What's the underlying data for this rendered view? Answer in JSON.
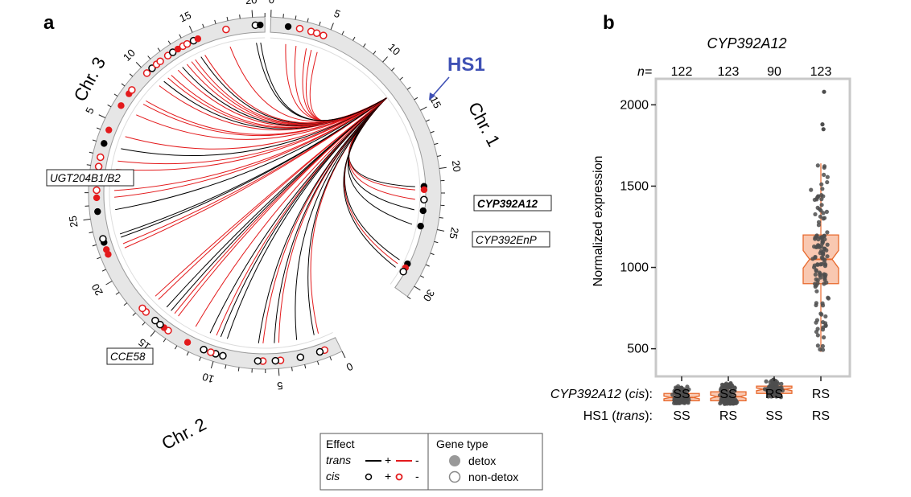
{
  "panel_a": {
    "label": "a",
    "hotspot": "HS1",
    "chromosomes": [
      {
        "name": "Chr. 1",
        "ticks": [
          "0",
          "5",
          "10",
          "15",
          "20",
          "25",
          "30"
        ]
      },
      {
        "name": "Chr. 2",
        "ticks": [
          "0",
          "5",
          "10",
          "15",
          "20",
          "25"
        ]
      },
      {
        "name": "Chr. 3",
        "ticks": [
          "0",
          "5",
          "10",
          "15",
          "20"
        ]
      }
    ],
    "gene_labels": [
      "CYP392A12",
      "CYP392EnP",
      "UGT204B1/B2",
      "CCE58"
    ],
    "legend": {
      "effect_title": "Effect",
      "trans_label": "trans",
      "cis_label": "cis",
      "plus": "+",
      "minus": "-",
      "genetype_title": "Gene type",
      "detox_label": "detox",
      "nondetox_label": "non-detox"
    }
  },
  "panel_b": {
    "label": "b",
    "title": "CYP392A12",
    "n_label": "n=",
    "ylabel": "Normalized expression",
    "cis_row_label": "CYP392A12 (cis):",
    "cis_row_gene": "CYP392A12",
    "cis_row_suffix": "(cis):",
    "trans_row_gene": "HS1",
    "trans_row_suffix": "(trans):"
  },
  "chart_data": [
    {
      "type": "chord",
      "title": "",
      "segments": [
        "Chr. 1",
        "Chr. 2",
        "Chr. 3"
      ],
      "hotspot": {
        "name": "HS1",
        "chromosome": "Chr. 1",
        "position": 12.5
      },
      "links_from_hotspot": [
        {
          "chr": "Chr. 1",
          "pos": 1.5,
          "effect": "-",
          "cis": "+",
          "gene": "detox"
        },
        {
          "chr": "Chr. 1",
          "pos": 2.5,
          "effect": "-",
          "cis": "-",
          "gene": "non-detox"
        },
        {
          "chr": "Chr. 1",
          "pos": 3.5,
          "effect": "-",
          "cis": "-",
          "gene": "non-detox"
        },
        {
          "chr": "Chr. 1",
          "pos": 4.0,
          "effect": "-",
          "cis": "-",
          "gene": "non-detox"
        },
        {
          "chr": "Chr. 1",
          "pos": 4.6,
          "effect": "-",
          "cis": "-",
          "gene": "non-detox"
        },
        {
          "chr": "Chr. 1",
          "pos": 21.4,
          "effect": "+",
          "cis": "+",
          "gene": "detox",
          "label": "CYP392A12"
        },
        {
          "chr": "Chr. 1",
          "pos": 21.7,
          "effect": "-",
          "cis": "-",
          "gene": "detox"
        },
        {
          "chr": "Chr. 1",
          "pos": 22.6,
          "effect": "-",
          "cis": "+",
          "gene": "non-detox"
        },
        {
          "chr": "Chr. 1",
          "pos": 23.6,
          "effect": "+",
          "cis": "+",
          "gene": "detox",
          "label": "CYP392EnP"
        },
        {
          "chr": "Chr. 1",
          "pos": 25.0,
          "effect": "+",
          "cis": "+",
          "gene": "detox"
        },
        {
          "chr": "Chr. 1",
          "pos": 28.6,
          "effect": "+",
          "cis": "+",
          "gene": "detox"
        },
        {
          "chr": "Chr. 1",
          "pos": 29.0,
          "effect": "-",
          "cis": "-",
          "gene": "detox"
        },
        {
          "chr": "Chr. 1",
          "pos": 29.4,
          "effect": "+",
          "cis": "+",
          "gene": "non-detox"
        },
        {
          "chr": "Chr. 2",
          "pos": 1.2,
          "effect": "-",
          "cis": "-",
          "gene": "non-detox"
        },
        {
          "chr": "Chr. 2",
          "pos": 1.6,
          "effect": "+",
          "cis": "+",
          "gene": "non-detox"
        },
        {
          "chr": "Chr. 2",
          "pos": 3.2,
          "effect": "+",
          "cis": "+",
          "gene": "non-detox"
        },
        {
          "chr": "Chr. 2",
          "pos": 4.8,
          "effect": "-",
          "cis": "-",
          "gene": "non-detox"
        },
        {
          "chr": "Chr. 2",
          "pos": 5.2,
          "effect": "+",
          "cis": "+",
          "gene": "non-detox"
        },
        {
          "chr": "Chr. 2",
          "pos": 6.2,
          "effect": "-",
          "cis": "-",
          "gene": "non-detox"
        },
        {
          "chr": "Chr. 2",
          "pos": 6.6,
          "effect": "+",
          "cis": "+",
          "gene": "non-detox"
        },
        {
          "chr": "Chr. 2",
          "pos": 9.4,
          "effect": "+",
          "cis": "+",
          "gene": "non-detox"
        },
        {
          "chr": "Chr. 2",
          "pos": 10.0,
          "effect": "+",
          "cis": "+",
          "gene": "non-detox"
        },
        {
          "chr": "Chr. 2",
          "pos": 10.4,
          "effect": "-",
          "cis": "-",
          "gene": "non-detox"
        },
        {
          "chr": "Chr. 2",
          "pos": 11.0,
          "effect": "+",
          "cis": "+",
          "gene": "non-detox"
        },
        {
          "chr": "Chr. 2",
          "pos": 12.4,
          "effect": "-",
          "cis": "-",
          "gene": "detox"
        },
        {
          "chr": "Chr. 2",
          "pos": 14.2,
          "effect": "-",
          "cis": "-",
          "gene": "non-detox"
        },
        {
          "chr": "Chr. 2",
          "pos": 14.6,
          "effect": "-",
          "cis": "-",
          "gene": "detox"
        },
        {
          "chr": "Chr. 2",
          "pos": 15.0,
          "effect": "+",
          "cis": "+",
          "gene": "non-detox"
        },
        {
          "chr": "Chr. 2",
          "pos": 15.5,
          "effect": "+",
          "cis": "+",
          "gene": "non-detox"
        },
        {
          "chr": "Chr. 2",
          "pos": 16.5,
          "effect": "-",
          "cis": "-",
          "gene": "non-detox"
        },
        {
          "chr": "Chr. 2",
          "pos": 16.9,
          "effect": "-",
          "cis": "-",
          "gene": "non-detox"
        },
        {
          "chr": "Chr. 2",
          "pos": 22.0,
          "effect": "-",
          "cis": "-",
          "gene": "detox"
        },
        {
          "chr": "Chr. 2",
          "pos": 22.4,
          "effect": "-",
          "cis": "-",
          "gene": "detox"
        },
        {
          "chr": "Chr. 2",
          "pos": 23.0,
          "effect": "+",
          "cis": "+",
          "gene": "detox",
          "label": "CCE58"
        },
        {
          "chr": "Chr. 2",
          "pos": 23.3,
          "effect": "+",
          "cis": "+",
          "gene": "non-detox"
        },
        {
          "chr": "Chr. 2",
          "pos": 25.5,
          "effect": "+",
          "cis": "+",
          "gene": "detox"
        },
        {
          "chr": "Chr. 2",
          "pos": 26.6,
          "effect": "-",
          "cis": "-",
          "gene": "detox"
        },
        {
          "chr": "Chr. 2",
          "pos": 27.2,
          "effect": "-",
          "cis": "-",
          "gene": "non-detox"
        },
        {
          "chr": "Chr. 3",
          "pos": 1.0,
          "effect": "-",
          "cis": "-",
          "gene": "non-detox"
        },
        {
          "chr": "Chr. 3",
          "pos": 1.8,
          "effect": "-",
          "cis": "-",
          "gene": "non-detox"
        },
        {
          "chr": "Chr. 3",
          "pos": 3.0,
          "effect": "+",
          "cis": "+",
          "gene": "detox"
        },
        {
          "chr": "Chr. 3",
          "pos": 4.2,
          "effect": "-",
          "cis": "-",
          "gene": "detox",
          "label": "UGT204B1/B2"
        },
        {
          "chr": "Chr. 3",
          "pos": 6.5,
          "effect": "-",
          "cis": "-",
          "gene": "detox"
        },
        {
          "chr": "Chr. 3",
          "pos": 7.7,
          "effect": "-",
          "cis": "-",
          "gene": "detox"
        },
        {
          "chr": "Chr. 3",
          "pos": 8.1,
          "effect": "-",
          "cis": "-",
          "gene": "non-detox"
        },
        {
          "chr": "Chr. 3",
          "pos": 10.0,
          "effect": "-",
          "cis": "-",
          "gene": "non-detox"
        },
        {
          "chr": "Chr. 3",
          "pos": 10.6,
          "effect": "+",
          "cis": "+",
          "gene": "non-detox"
        },
        {
          "chr": "Chr. 3",
          "pos": 11.1,
          "effect": "-",
          "cis": "-",
          "gene": "non-detox"
        },
        {
          "chr": "Chr. 3",
          "pos": 11.5,
          "effect": "-",
          "cis": "-",
          "gene": "non-detox"
        },
        {
          "chr": "Chr. 3",
          "pos": 12.3,
          "effect": "-",
          "cis": "-",
          "gene": "non-detox"
        },
        {
          "chr": "Chr. 3",
          "pos": 12.8,
          "effect": "+",
          "cis": "+",
          "gene": "non-detox"
        },
        {
          "chr": "Chr. 3",
          "pos": 13.3,
          "effect": "-",
          "cis": "-",
          "gene": "detox"
        },
        {
          "chr": "Chr. 3",
          "pos": 13.8,
          "effect": "-",
          "cis": "-",
          "gene": "non-detox"
        },
        {
          "chr": "Chr. 3",
          "pos": 14.2,
          "effect": "-",
          "cis": "-",
          "gene": "non-detox"
        },
        {
          "chr": "Chr. 3",
          "pos": 14.8,
          "effect": "+",
          "cis": "+",
          "gene": "non-detox"
        },
        {
          "chr": "Chr. 3",
          "pos": 15.2,
          "effect": "-",
          "cis": "-",
          "gene": "detox"
        },
        {
          "chr": "Chr. 3",
          "pos": 17.7,
          "effect": "-",
          "cis": "-",
          "gene": "non-detox"
        },
        {
          "chr": "Chr. 3",
          "pos": 20.2,
          "effect": "+",
          "cis": "+",
          "gene": "non-detox"
        },
        {
          "chr": "Chr. 3",
          "pos": 20.6,
          "effect": "+",
          "cis": "+",
          "gene": "detox"
        }
      ],
      "colors": {
        "trans_plus": "#000000",
        "trans_minus": "#e31a1c",
        "ring": "#e6e6e6",
        "hotspot": "#3f51b5"
      }
    },
    {
      "type": "box",
      "title": "CYP392A12",
      "ylabel": "Normalized expression",
      "ylim": [
        330,
        2160
      ],
      "yticks": [
        500,
        1000,
        1500,
        2000
      ],
      "groups": [
        {
          "n": "122",
          "cis": "SS",
          "trans": "SS",
          "median": 200,
          "q1": 180,
          "q3": 225,
          "whisker_low": 165,
          "whisker_high": 270
        },
        {
          "n": "123",
          "cis": "SS",
          "trans": "RS",
          "median": 205,
          "q1": 180,
          "q3": 235,
          "whisker_low": 160,
          "whisker_high": 290
        },
        {
          "n": "90",
          "cis": "RS",
          "trans": "SS",
          "median": 250,
          "q1": 225,
          "q3": 270,
          "whisker_low": 200,
          "whisker_high": 310
        },
        {
          "n": "123",
          "cis": "RS",
          "trans": "RS",
          "median": 1050,
          "q1": 900,
          "q3": 1200,
          "whisker_low": 480,
          "whisker_high": 1640,
          "outliers": [
            1850,
            1880,
            2080
          ]
        }
      ],
      "colors": {
        "box_fill": "#f9c8b1",
        "box_line": "#e8692d",
        "points": "#4d4d4d"
      }
    }
  ]
}
